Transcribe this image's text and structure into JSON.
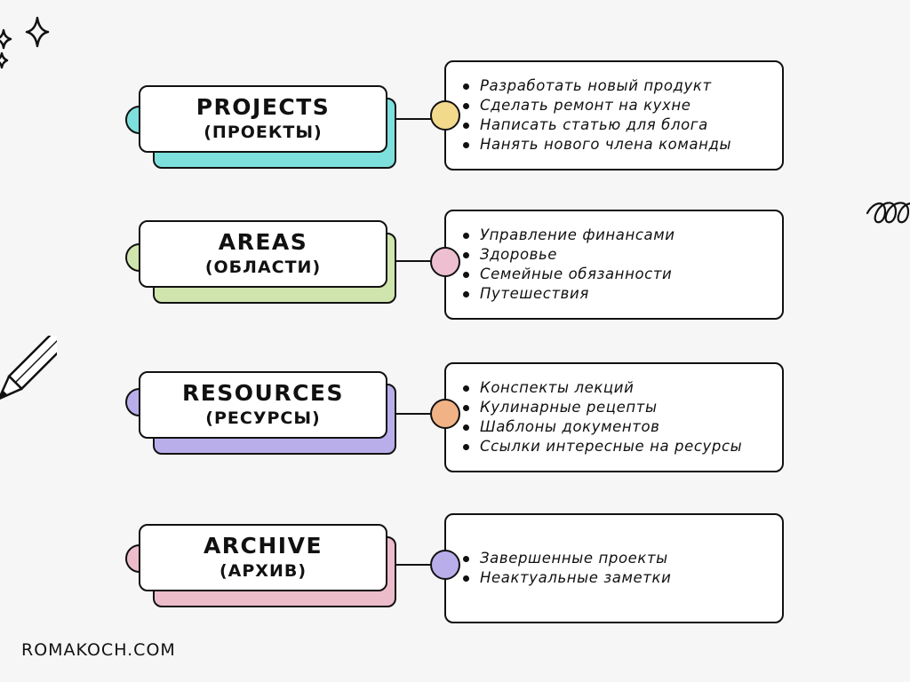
{
  "rows": [
    {
      "title": "PROJECTS",
      "subtitle": "(ПРОЕКТЫ)",
      "accent": "#7ee0dc",
      "dot": "#f3d98c",
      "items": [
        "Разработать новый продукт",
        "Сделать ремонт на кухне",
        "Написать статью для блога",
        "Нанять нового члена команды"
      ]
    },
    {
      "title": "AREAS",
      "subtitle": "(ОБЛАСТИ)",
      "accent": "#cfe5ad",
      "dot": "#eebfd0",
      "items": [
        "Управление финансами",
        "Здоровье",
        "Семейные обязанности",
        "Путешествия"
      ]
    },
    {
      "title": "RESOURCES",
      "subtitle": "(РЕСУРСЫ)",
      "accent": "#b9aeea",
      "dot": "#f1b385",
      "items": [
        "Конспекты лекций",
        "Кулинарные рецепты",
        "Шаблоны документов",
        "Ссылки интересные на ресурсы"
      ]
    },
    {
      "title": "ARCHIVE",
      "subtitle": "(АРХИВ)",
      "accent": "#ecbccb",
      "dot": "#b9aeea",
      "items": [
        "Завершенные проекты",
        "Неактуальные заметки"
      ]
    }
  ],
  "footer": "ROMAKOCH.COM",
  "icons": [
    "sparkle-icon",
    "pencil-icon",
    "loops-doodle-icon"
  ]
}
